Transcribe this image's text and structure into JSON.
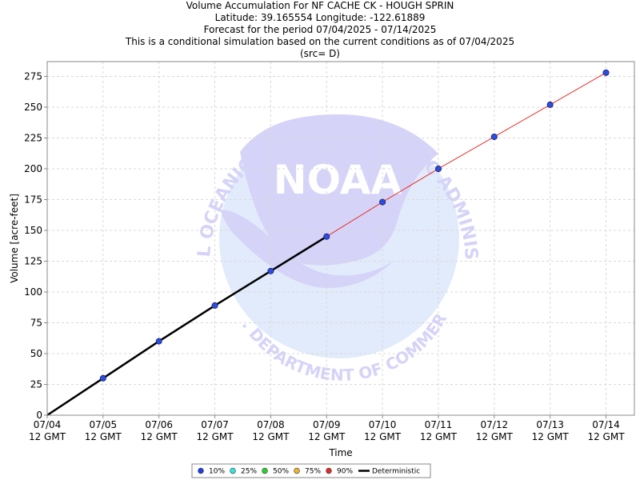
{
  "header": {
    "title": "Volume Accumulation For NF CACHE CK - HOUGH SPRIN",
    "location": "Latitude: 39.165554 Longitude: -122.61889",
    "period": "Forecast for the period 07/04/2025 - 07/14/2025",
    "note": "This is a conditional simulation based on the current conditions as of 07/04/2025",
    "source": "(src= D)"
  },
  "watermark": {
    "arc_top_text": "NATIONAL OCEANIC AND ATMOSPHERIC ADMINISTRATION",
    "arc_bottom_text": "U.S. DEPARTMENT OF COMMERCE",
    "logo_text": "NOAA"
  },
  "colors": {
    "observed_line": "#000000",
    "forecast_line": "#e8302a",
    "marker_fill": "#2a4fe0",
    "grid": "#d8d8d8",
    "watermark_light": "#e2ebfb",
    "watermark_dark": "#d5d3f8"
  },
  "chart_data": {
    "type": "line",
    "xlabel": "Time",
    "ylabel": "Volume [acre-feet]",
    "ylim": [
      0,
      287
    ],
    "yticks": [
      0,
      25,
      50,
      75,
      100,
      125,
      150,
      175,
      200,
      225,
      250,
      275
    ],
    "grid": true,
    "categories": [
      "07/04\n12 GMT",
      "07/05\n12 GMT",
      "07/06\n12 GMT",
      "07/07\n12 GMT",
      "07/08\n12 GMT",
      "07/09\n12 GMT",
      "07/10\n12 GMT",
      "07/11\n12 GMT",
      "07/12\n12 GMT",
      "07/13\n12 GMT",
      "07/14\n12 GMT"
    ],
    "series": [
      {
        "name": "Deterministic",
        "values": [
          0,
          30,
          60,
          89,
          117,
          145,
          null,
          null,
          null,
          null,
          null
        ]
      },
      {
        "values": [
          null,
          null,
          null,
          null,
          null,
          145,
          173,
          200,
          226,
          252,
          278
        ]
      }
    ],
    "legend": {
      "placement": "bottom-center",
      "entries": [
        {
          "label": "10%",
          "color": "#1f3fe6"
        },
        {
          "label": "25%",
          "color": "#2ee6e6"
        },
        {
          "label": "50%",
          "color": "#28d228"
        },
        {
          "label": "75%",
          "color": "#f0b42a"
        },
        {
          "label": "90%",
          "color": "#e62828"
        },
        {
          "label": "Deterministic",
          "color": "#000000"
        }
      ]
    }
  }
}
